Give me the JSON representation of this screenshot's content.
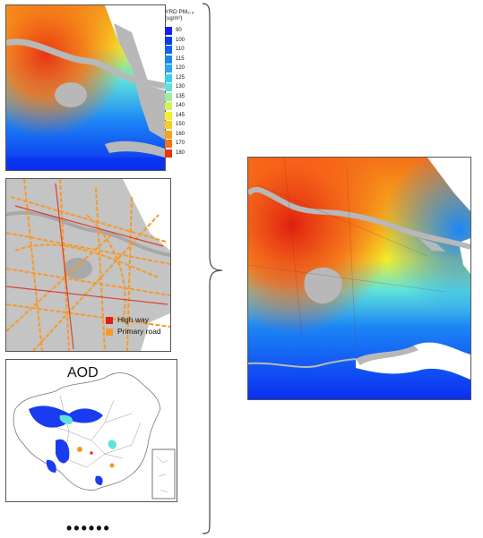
{
  "pm_map": {
    "legend_title": "YRD PM₂.₅",
    "legend_unit": "(ug/m³)",
    "legend": [
      {
        "label": "90",
        "color": "#1a1aff"
      },
      {
        "label": "100",
        "color": "#0a3cf0"
      },
      {
        "label": "110",
        "color": "#1660f2"
      },
      {
        "label": "115",
        "color": "#1c86f5"
      },
      {
        "label": "120",
        "color": "#28a8f5"
      },
      {
        "label": "125",
        "color": "#3ccdf5"
      },
      {
        "label": "130",
        "color": "#5ee3dc"
      },
      {
        "label": "135",
        "color": "#9af0a0"
      },
      {
        "label": "140",
        "color": "#d2f25a"
      },
      {
        "label": "145",
        "color": "#f5ee2a"
      },
      {
        "label": "150",
        "color": "#f8cc1e"
      },
      {
        "label": "160",
        "color": "#f8a21a"
      },
      {
        "label": "170",
        "color": "#f57018"
      },
      {
        "label": "180",
        "color": "#e83414"
      }
    ]
  },
  "road_map": {
    "legend": [
      {
        "label": "High way",
        "color": "#e02010"
      },
      {
        "label": "Primary road",
        "color": "#f59a2a"
      }
    ]
  },
  "aod_map": {
    "title": "AOD"
  },
  "ellipsis": "••••••"
}
